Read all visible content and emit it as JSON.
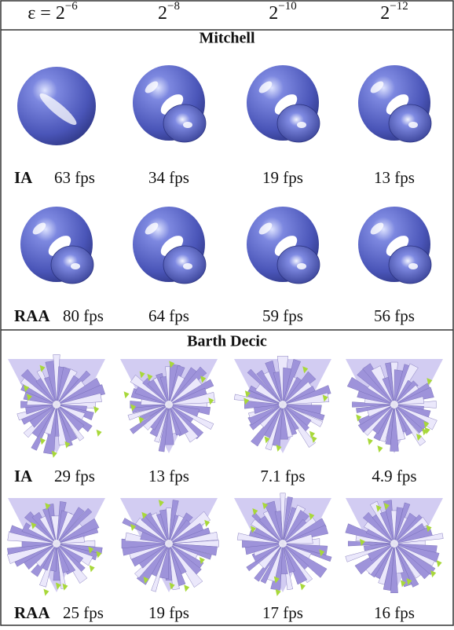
{
  "header": [
    {
      "base": "ε = 2",
      "exp": "−6"
    },
    {
      "base": "2",
      "exp": "−8"
    },
    {
      "base": "2",
      "exp": "−10"
    },
    {
      "base": "2",
      "exp": "−12"
    }
  ],
  "sections": [
    {
      "title": "Mitchell",
      "rows": [
        {
          "method": "IA",
          "fps": [
            "63 fps",
            "34 fps",
            "19 fps",
            "13 fps"
          ]
        },
        {
          "method": "RAA",
          "fps": [
            "80 fps",
            "64 fps",
            "59 fps",
            "56 fps"
          ]
        }
      ]
    },
    {
      "title": "Barth Decic",
      "rows": [
        {
          "method": "IA",
          "fps": [
            "29 fps",
            "13 fps",
            "7.1 fps",
            "4.9 fps"
          ]
        },
        {
          "method": "RAA",
          "fps": [
            "25 fps",
            "19 fps",
            "17 fps",
            "16 fps"
          ]
        }
      ]
    }
  ]
}
